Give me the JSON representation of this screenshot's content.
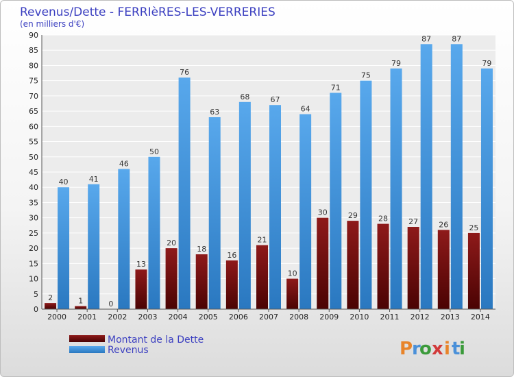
{
  "chart_data": {
    "type": "bar",
    "title": "Revenus/Dette - FERRIèRES-LES-VERRERIES",
    "subtitle": "(en milliers d'€)",
    "categories": [
      "2000",
      "2001",
      "2002",
      "2003",
      "2004",
      "2005",
      "2006",
      "2007",
      "2008",
      "2009",
      "2010",
      "2011",
      "2012",
      "2013",
      "2014"
    ],
    "series": [
      {
        "name": "Montant de la Dette",
        "color": "#6b0a0a",
        "values": [
          2,
          1,
          0,
          13,
          20,
          18,
          16,
          21,
          10,
          30,
          29,
          28,
          27,
          26,
          25
        ]
      },
      {
        "name": "Revenus",
        "color": "#3d94dc",
        "values": [
          40,
          41,
          46,
          50,
          76,
          63,
          68,
          67,
          64,
          71,
          75,
          79,
          87,
          87,
          79
        ]
      }
    ],
    "ylim": [
      0,
      90
    ],
    "yticks": [
      0,
      5,
      10,
      15,
      20,
      25,
      30,
      35,
      40,
      45,
      50,
      55,
      60,
      65,
      70,
      75,
      80,
      85,
      90
    ],
    "grid": true,
    "legend": "bottom-left"
  },
  "logo": {
    "letters": [
      "P",
      "r",
      "o",
      "x",
      "i",
      "t",
      "i"
    ],
    "colors": [
      "#e8842a",
      "#4a90d9",
      "#3a9a3a",
      "#d23a3a",
      "#e8842a",
      "#4a90d9",
      "#3a9a3a"
    ]
  }
}
